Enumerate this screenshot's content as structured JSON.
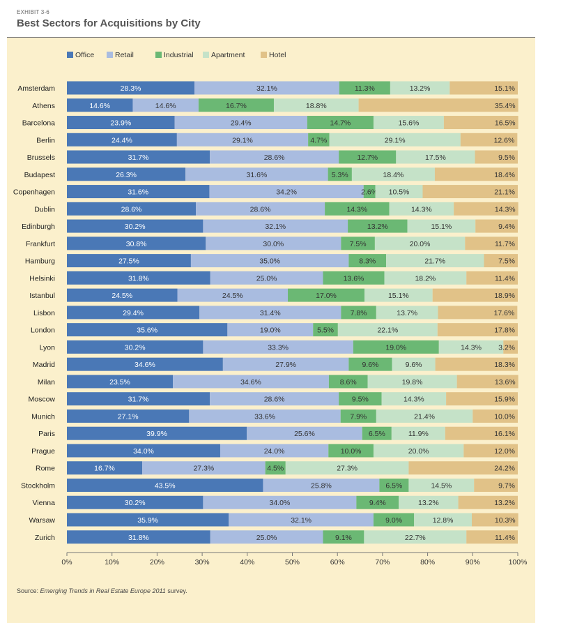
{
  "header": {
    "exhibit": "EXHIBIT 3-6",
    "title": "Best Sectors for Acquisitions by City"
  },
  "footer": {
    "prefix": "Source: ",
    "source_title": "Emerging Trends in Real Estate Europe 2011",
    "suffix": " survey."
  },
  "chart_data": {
    "type": "bar",
    "orientation": "horizontal",
    "stacked": true,
    "percent_stacked": true,
    "title": "Best Sectors for Acquisitions by City",
    "xlim": [
      0,
      100
    ],
    "x_ticks": [
      "0%",
      "10%",
      "20%",
      "30%",
      "40%",
      "50%",
      "60%",
      "70%",
      "80%",
      "90%",
      "100%"
    ],
    "legend_position": "top-left",
    "grid": false,
    "categories": [
      "Amsterdam",
      "Athens",
      "Barcelona",
      "Berlin",
      "Brussels",
      "Budapest",
      "Copenhagen",
      "Dublin",
      "Edinburgh",
      "Frankfurt",
      "Hamburg",
      "Helsinki",
      "Istanbul",
      "Lisbon",
      "London",
      "Lyon",
      "Madrid",
      "Milan",
      "Moscow",
      "Munich",
      "Paris",
      "Prague",
      "Rome",
      "Stockholm",
      "Vienna",
      "Warsaw",
      "Zurich"
    ],
    "series": [
      {
        "name": "Office",
        "color": "#4a78b6",
        "values": [
          28.3,
          14.6,
          23.9,
          24.4,
          31.7,
          26.3,
          31.6,
          28.6,
          30.2,
          30.8,
          27.5,
          31.8,
          24.5,
          29.4,
          35.6,
          30.2,
          34.6,
          23.5,
          31.7,
          27.1,
          39.9,
          34.0,
          16.7,
          43.5,
          30.2,
          35.9,
          31.8
        ]
      },
      {
        "name": "Retail",
        "color": "#a9bce0",
        "values": [
          32.1,
          14.6,
          29.4,
          29.1,
          28.6,
          31.6,
          34.2,
          28.6,
          32.1,
          30.0,
          35.0,
          25.0,
          24.5,
          31.4,
          19.0,
          33.3,
          27.9,
          34.6,
          28.6,
          33.6,
          25.6,
          24.0,
          27.3,
          25.8,
          34.0,
          32.1,
          25.0
        ]
      },
      {
        "name": "Industrial",
        "color": "#6bb874",
        "values": [
          11.3,
          16.7,
          14.7,
          4.7,
          12.7,
          5.3,
          2.6,
          14.3,
          13.2,
          7.5,
          8.3,
          13.6,
          17.0,
          7.8,
          5.5,
          19.0,
          9.6,
          8.6,
          9.5,
          7.9,
          6.5,
          10.0,
          4.5,
          6.5,
          9.4,
          9.0,
          9.1
        ]
      },
      {
        "name": "Apartment",
        "color": "#c5e2c8",
        "values": [
          13.2,
          18.8,
          15.6,
          29.1,
          17.5,
          18.4,
          10.5,
          14.3,
          15.1,
          20.0,
          21.7,
          18.2,
          15.1,
          13.7,
          22.1,
          14.3,
          9.6,
          19.8,
          14.3,
          21.4,
          11.9,
          20.0,
          27.3,
          14.5,
          13.2,
          12.8,
          22.7
        ]
      },
      {
        "name": "Hotel",
        "color": "#e1c288",
        "values": [
          15.1,
          35.4,
          16.5,
          12.6,
          9.5,
          18.4,
          21.1,
          14.3,
          9.4,
          11.7,
          7.5,
          11.4,
          18.9,
          17.6,
          17.8,
          3.2,
          18.3,
          13.6,
          15.9,
          10.0,
          16.1,
          12.0,
          24.2,
          9.7,
          13.2,
          10.3,
          11.4
        ]
      }
    ],
    "value_labels": [
      [
        "28.3%",
        "32.1%",
        "11.3%",
        "13.2%",
        "15.1%"
      ],
      [
        "14.6%",
        "14.6%",
        "16.7%",
        "18.8%",
        "35.4%"
      ],
      [
        "23.9%",
        "29.4%",
        "14.7%",
        "15.6%",
        "16.5%"
      ],
      [
        "24.4%",
        "29.1%",
        "4.7%",
        "29.1%",
        "12.6%"
      ],
      [
        "31.7%",
        "28.6%",
        "12.7%",
        "17.5%",
        "9.5%"
      ],
      [
        "26.3%",
        "31.6%",
        "5.3%",
        "18.4%",
        "18.4%"
      ],
      [
        "31.6%",
        "34.2%",
        "2.6%",
        "10.5%",
        "21.1%"
      ],
      [
        "28.6%",
        "28.6%",
        "14.3%",
        "14.3%",
        "14.3%"
      ],
      [
        "30.2%",
        "32.1%",
        "13.2%",
        "15.1%",
        "9.4%"
      ],
      [
        "30.8%",
        "30.0%",
        "7.5%",
        "20.0%",
        "11.7%"
      ],
      [
        "27.5%",
        "35.0%",
        "8.3%",
        "21.7%",
        "7.5%"
      ],
      [
        "31.8%",
        "25.0%",
        "13.6%",
        "18.2%",
        "11.4%"
      ],
      [
        "24.5%",
        "24.5%",
        "17.0%",
        "15.1%",
        "18.9%"
      ],
      [
        "29.4%",
        "31.4%",
        "7.8%",
        "13.7%",
        "17.6%"
      ],
      [
        "35.6%",
        "19.0%",
        "5.5%",
        "22.1%",
        "17.8%"
      ],
      [
        "30.2%",
        "33.3%",
        "19.0%",
        "14.3%",
        "3.2%"
      ],
      [
        "34.6%",
        "27.9%",
        "9.6%",
        "9.6%",
        "18.3%"
      ],
      [
        "23.5%",
        "34.6%",
        "8.6%",
        "19.8%",
        "13.6%"
      ],
      [
        "31.7%",
        "28.6%",
        "9.5%",
        "14.3%",
        "15.9%"
      ],
      [
        "27.1%",
        "33.6%",
        "7.9%",
        "21.4%",
        "10.0%"
      ],
      [
        "39.9%",
        "25.6%",
        "6.5%",
        "11.9%",
        "16.1%"
      ],
      [
        "34.0%",
        "24.0%",
        "10.0%",
        "20.0%",
        "12.0%"
      ],
      [
        "16.7%",
        "27.3%",
        "4.5%",
        "27.3%",
        "24.2%"
      ],
      [
        "43.5%",
        "25.8%",
        "6.5%",
        "14.5%",
        "9.7%"
      ],
      [
        "30.2%",
        "34.0%",
        "9.4%",
        "13.2%",
        "13.2%"
      ],
      [
        "35.9%",
        "32.1%",
        "9.0%",
        "12.8%",
        "10.3%"
      ],
      [
        "31.8%",
        "25.0%",
        "9.1%",
        "22.7%",
        "11.4%"
      ]
    ]
  }
}
